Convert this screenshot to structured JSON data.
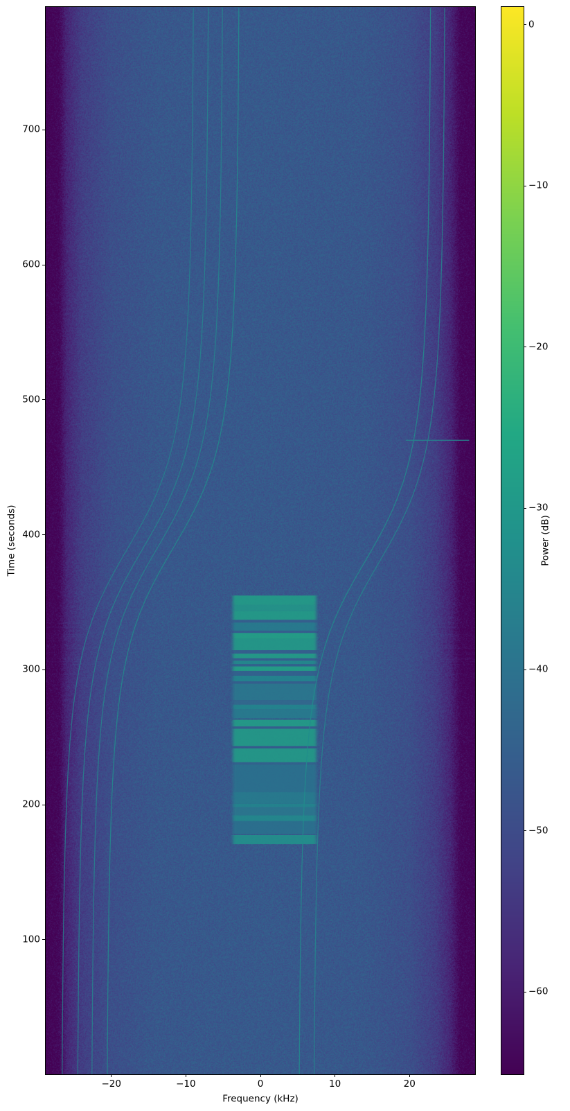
{
  "chart_data": {
    "type": "heatmap",
    "title": "",
    "xlabel": "Frequency (kHz)",
    "ylabel": "Time (seconds)",
    "xlim": [
      -28.8,
      28.8
    ],
    "ylim": [
      0.4,
      791
    ],
    "xticks": [
      {
        "value": -20,
        "label": "−20"
      },
      {
        "value": -10,
        "label": "−10"
      },
      {
        "value": 0,
        "label": "0"
      },
      {
        "value": 10,
        "label": "10"
      },
      {
        "value": 20,
        "label": "20"
      }
    ],
    "yticks": [
      {
        "value": 100,
        "label": "100"
      },
      {
        "value": 200,
        "label": "200"
      },
      {
        "value": 300,
        "label": "300"
      },
      {
        "value": 400,
        "label": "400"
      },
      {
        "value": 500,
        "label": "500"
      },
      {
        "value": 600,
        "label": "600"
      },
      {
        "value": 700,
        "label": "700"
      }
    ],
    "colorbar": {
      "label": "Power (dB)",
      "colormap": "viridis",
      "range": [
        -65.1,
        1.1
      ],
      "ticks": [
        {
          "value": 0,
          "label": "0"
        },
        {
          "value": -10,
          "label": "−10"
        },
        {
          "value": -20,
          "label": "−20"
        },
        {
          "value": -30,
          "label": "−30"
        },
        {
          "value": -40,
          "label": "−40"
        },
        {
          "value": -50,
          "label": "−50"
        },
        {
          "value": -60,
          "label": "−60"
        }
      ]
    },
    "noise_floor_db": [
      {
        "f": -28.8,
        "db": -65
      },
      {
        "f": -27.0,
        "db": -64
      },
      {
        "f": -26.0,
        "db": -58
      },
      {
        "f": -24.0,
        "db": -53
      },
      {
        "f": -20.0,
        "db": -49
      },
      {
        "f": -14.0,
        "db": -47
      },
      {
        "f": 0,
        "db": -46.5
      },
      {
        "f": 14.0,
        "db": -47
      },
      {
        "f": 20.0,
        "db": -49
      },
      {
        "f": 23.5,
        "db": -53
      },
      {
        "f": 25.5,
        "db": -58
      },
      {
        "f": 26.8,
        "db": -64
      },
      {
        "f": 28.8,
        "db": -65
      }
    ],
    "burst": {
      "freq_range": [
        -3.7,
        7.5
      ],
      "segments": [
        {
          "t": [
            348,
            355
          ],
          "db": -27
        },
        {
          "t": [
            343.5,
            348
          ],
          "db": -29
        },
        {
          "t": [
            337,
            343.5
          ],
          "db": -27
        },
        {
          "t": [
            335,
            337
          ],
          "db": -45
        },
        {
          "t": [
            329,
            335
          ],
          "db": -37
        },
        {
          "t": [
            327.3,
            329
          ],
          "db": -45
        },
        {
          "t": [
            323,
            327.3
          ],
          "db": -26
        },
        {
          "t": [
            314.5,
            323
          ],
          "db": -28
        },
        {
          "t": [
            312,
            314.5
          ],
          "db": -45
        },
        {
          "t": [
            308.5,
            312
          ],
          "db": -27
        },
        {
          "t": [
            306.8,
            308.5
          ],
          "db": -45
        },
        {
          "t": [
            304.2,
            306.8
          ],
          "db": -33
        },
        {
          "t": [
            302.5,
            304.2
          ],
          "db": -44
        },
        {
          "t": [
            299.2,
            302.5
          ],
          "db": -26
        },
        {
          "t": [
            295.6,
            299.2
          ],
          "db": -44
        },
        {
          "t": [
            291.4,
            295.6
          ],
          "db": -34
        },
        {
          "t": [
            289.7,
            291.4
          ],
          "db": -45
        },
        {
          "t": [
            277.6,
            289.7
          ],
          "db": -38
        },
        {
          "t": [
            274.2,
            277.6
          ],
          "db": -42
        },
        {
          "t": [
            270.8,
            274.2
          ],
          "db": -34
        },
        {
          "t": [
            264,
            270.8
          ],
          "db": -37
        },
        {
          "t": [
            258,
            263
          ],
          "db": -27
        },
        {
          "t": [
            256.3,
            258
          ],
          "db": -45
        },
        {
          "t": [
            243.5,
            256.3
          ],
          "db": -28
        },
        {
          "t": [
            241.8,
            243.5
          ],
          "db": -46
        },
        {
          "t": [
            231.5,
            241.8
          ],
          "db": -28
        },
        {
          "t": [
            229.8,
            231.5
          ],
          "db": -44
        },
        {
          "t": [
            209.3,
            229.8
          ],
          "db": -40
        },
        {
          "t": [
            200.7,
            209.3
          ],
          "db": -37
        },
        {
          "t": [
            198.2,
            200.7
          ],
          "db": -34
        },
        {
          "t": [
            192.2,
            198.2
          ],
          "db": -38
        },
        {
          "t": [
            187.9,
            192.2
          ],
          "db": -33
        },
        {
          "t": [
            178.5,
            187.9
          ],
          "db": -40
        },
        {
          "t": [
            170.8,
            177.6
          ],
          "db": -31
        }
      ]
    },
    "doppler_traces": [
      {
        "f_start": -26.8,
        "f_end": -8.8,
        "t_center": 390,
        "db": -36
      },
      {
        "f_start": -24.7,
        "f_end": -6.8,
        "t_center": 390,
        "db": -35
      },
      {
        "f_start": -22.8,
        "f_end": -4.9,
        "t_center": 390,
        "db": -35
      },
      {
        "f_start": -20.75,
        "f_end": -2.7,
        "t_center": 390,
        "db": -33
      },
      {
        "f_start": 5.0,
        "f_end": 23.0,
        "t_center": 380,
        "db": -33
      },
      {
        "f_start": 7.0,
        "f_end": 24.9,
        "t_center": 380,
        "db": -35
      }
    ],
    "horizontal_lines": [
      {
        "t": 470,
        "f_range": [
          19.5,
          28.0
        ],
        "db": -36
      }
    ]
  }
}
